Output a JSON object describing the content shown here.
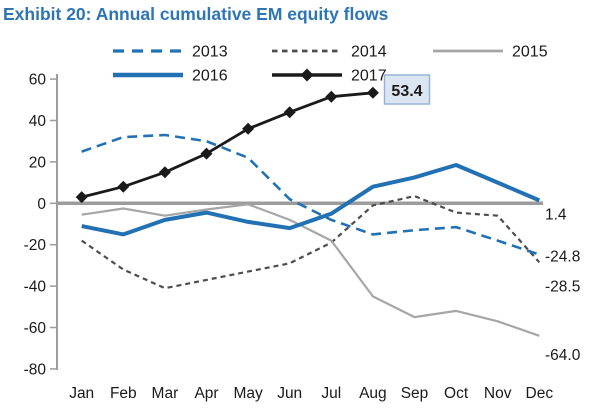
{
  "title": "Exhibit 20: Annual cumulative EM equity flows",
  "colors": {
    "title": "#2E75B6",
    "series_blue": "#2271B5",
    "series_dark_gray": "#4D4D4D",
    "series_gray": "#A6A6A6",
    "series_black": "#1A1A1A",
    "axis": "#9C9C9C",
    "zero_line": "#9C9C9C",
    "callout_bg": "#DCE6F2",
    "callout_border": "#95B3D7",
    "text": "#1A1A1A"
  },
  "chart_data": {
    "type": "line",
    "title": "Exhibit 20: Annual cumulative EM equity flows",
    "categories": [
      "Jan",
      "Feb",
      "Mar",
      "Apr",
      "May",
      "Jun",
      "Jul",
      "Aug",
      "Sep",
      "Oct",
      "Nov",
      "Dec"
    ],
    "xlabel": "",
    "ylabel": "",
    "ylim": [
      -80,
      60
    ],
    "yticks": [
      60,
      40,
      20,
      0,
      -20,
      -40,
      -60,
      -80
    ],
    "grid": false,
    "legend_position": "top",
    "series": [
      {
        "name": "2013",
        "color": "#2271B5",
        "line": "dashed",
        "values": [
          25,
          32,
          33,
          30,
          22,
          2,
          -8,
          -15,
          -13,
          -11.5,
          -18,
          -24.8
        ]
      },
      {
        "name": "2014",
        "color": "#4D4D4D",
        "line": "dashed-short",
        "values": [
          -18,
          -32,
          -41,
          -37,
          -33,
          -29,
          -19,
          -1,
          3.5,
          -4.5,
          -6,
          -28.5
        ]
      },
      {
        "name": "2015",
        "color": "#A6A6A6",
        "line": "solid",
        "values": [
          -5.5,
          -2.5,
          -6,
          -3,
          -0.5,
          -8,
          -18,
          -45,
          -55,
          -52,
          -57,
          -64
        ]
      },
      {
        "name": "2016",
        "color": "#2271B5",
        "line": "solid-thick",
        "values": [
          -11,
          -15,
          -8,
          -4.5,
          -9,
          -12,
          -5,
          8,
          12.5,
          18.5,
          10,
          1.4
        ]
      },
      {
        "name": "2017",
        "color": "#1A1A1A",
        "line": "solid-marker",
        "marker": "diamond",
        "values": [
          3,
          8,
          15,
          24,
          36,
          44,
          51.5,
          53.4
        ]
      }
    ],
    "end_labels": [
      {
        "text": "1.4",
        "series": "2016"
      },
      {
        "text": "-24.8",
        "series": "2013"
      },
      {
        "text": "-28.5",
        "series": "2014"
      },
      {
        "text": "-64.0",
        "series": "2015"
      }
    ],
    "callout": {
      "text": "53.4",
      "series": "2017"
    }
  },
  "legend": {
    "rows": [
      [
        "2013",
        "2014",
        "2015"
      ],
      [
        "2016",
        "2017"
      ]
    ]
  }
}
